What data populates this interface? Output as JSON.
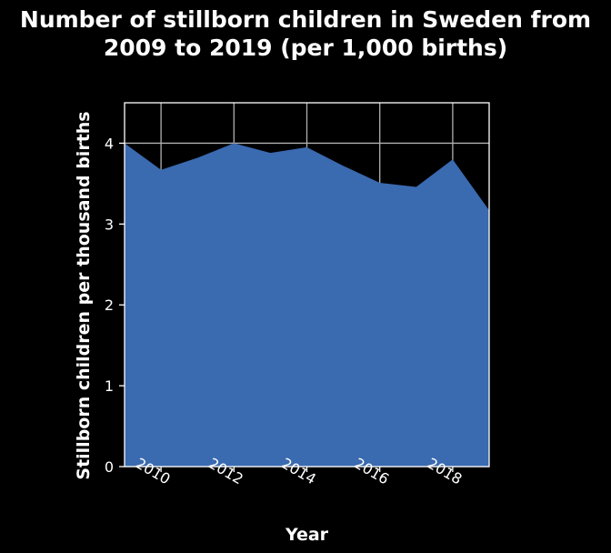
{
  "chart_data": {
    "type": "area",
    "title_lines": [
      "Number of stillborn children in Sweden from",
      "2009 to 2019 (per 1,000 births)"
    ],
    "xlabel": "Year",
    "ylabel": "Stillborn children per thousand births",
    "x": [
      2009,
      2010,
      2011,
      2012,
      2013,
      2014,
      2015,
      2016,
      2017,
      2018,
      2019
    ],
    "values": [
      4.0,
      3.67,
      3.82,
      4.0,
      3.88,
      3.95,
      3.72,
      3.51,
      3.46,
      3.8,
      3.17
    ],
    "xlim": [
      2009,
      2019
    ],
    "ylim": [
      0,
      4.5
    ],
    "xticks": [
      2010,
      2012,
      2014,
      2016,
      2018
    ],
    "yticks": [
      0,
      1,
      2,
      3,
      4
    ],
    "grid": true,
    "colors": {
      "fill": "#3a6ab0",
      "background": "#000000",
      "grid": "#b0b0b0",
      "frame": "#ffffff"
    }
  }
}
